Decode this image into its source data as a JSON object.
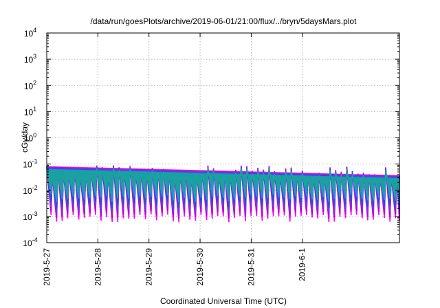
{
  "chart_data": {
    "type": "line",
    "title": "/data/run/goesPlots/archive/2019-06-01/21:00/flux/../bryn/5daysMars.plot",
    "xlabel": "Coordinated Universal Time (UTC)",
    "ylabel": "cGy/day",
    "yscale": "log",
    "ylim": [
      0.0001,
      10000
    ],
    "xlim": [
      0,
      6.9
    ],
    "grid": true,
    "legend": "none",
    "x_ticks": [
      {
        "label": "2019-5-27",
        "x": 0
      },
      {
        "label": "2019-5-28",
        "x": 1
      },
      {
        "label": "2019-5-29",
        "x": 2
      },
      {
        "label": "2019-5-30",
        "x": 3
      },
      {
        "label": "2019-5-31",
        "x": 4
      },
      {
        "label": "2019-6-1",
        "x": 5
      }
    ],
    "y_ticks": [
      {
        "exp": "-4",
        "value": 0.0001
      },
      {
        "exp": "-3",
        "value": 0.001
      },
      {
        "exp": "-2",
        "value": 0.01
      },
      {
        "exp": "-1",
        "value": 0.1
      },
      {
        "exp": "0",
        "value": 1
      },
      {
        "exp": "1",
        "value": 10
      },
      {
        "exp": "2",
        "value": 100
      },
      {
        "exp": "3",
        "value": 1000
      },
      {
        "exp": "4",
        "value": 10000
      }
    ],
    "pulses_per_day": 9.2,
    "envelope": {
      "peak_range": [
        0.035,
        0.09
      ],
      "trough_range": [
        0.0006,
        0.0012
      ]
    },
    "series": [
      {
        "color": "#ff00ff",
        "fraction_of_envelope": 1.0
      },
      {
        "color": "#b400d4",
        "fraction_of_envelope": 0.92
      },
      {
        "color": "#6c3fd8",
        "fraction_of_envelope": 0.82
      },
      {
        "color": "#1f4fe0",
        "fraction_of_envelope": 0.7
      },
      {
        "color": "#2196c8",
        "fraction_of_envelope": 0.58
      },
      {
        "color": "#1aa39a",
        "fraction_of_envelope": 0.45
      }
    ]
  }
}
